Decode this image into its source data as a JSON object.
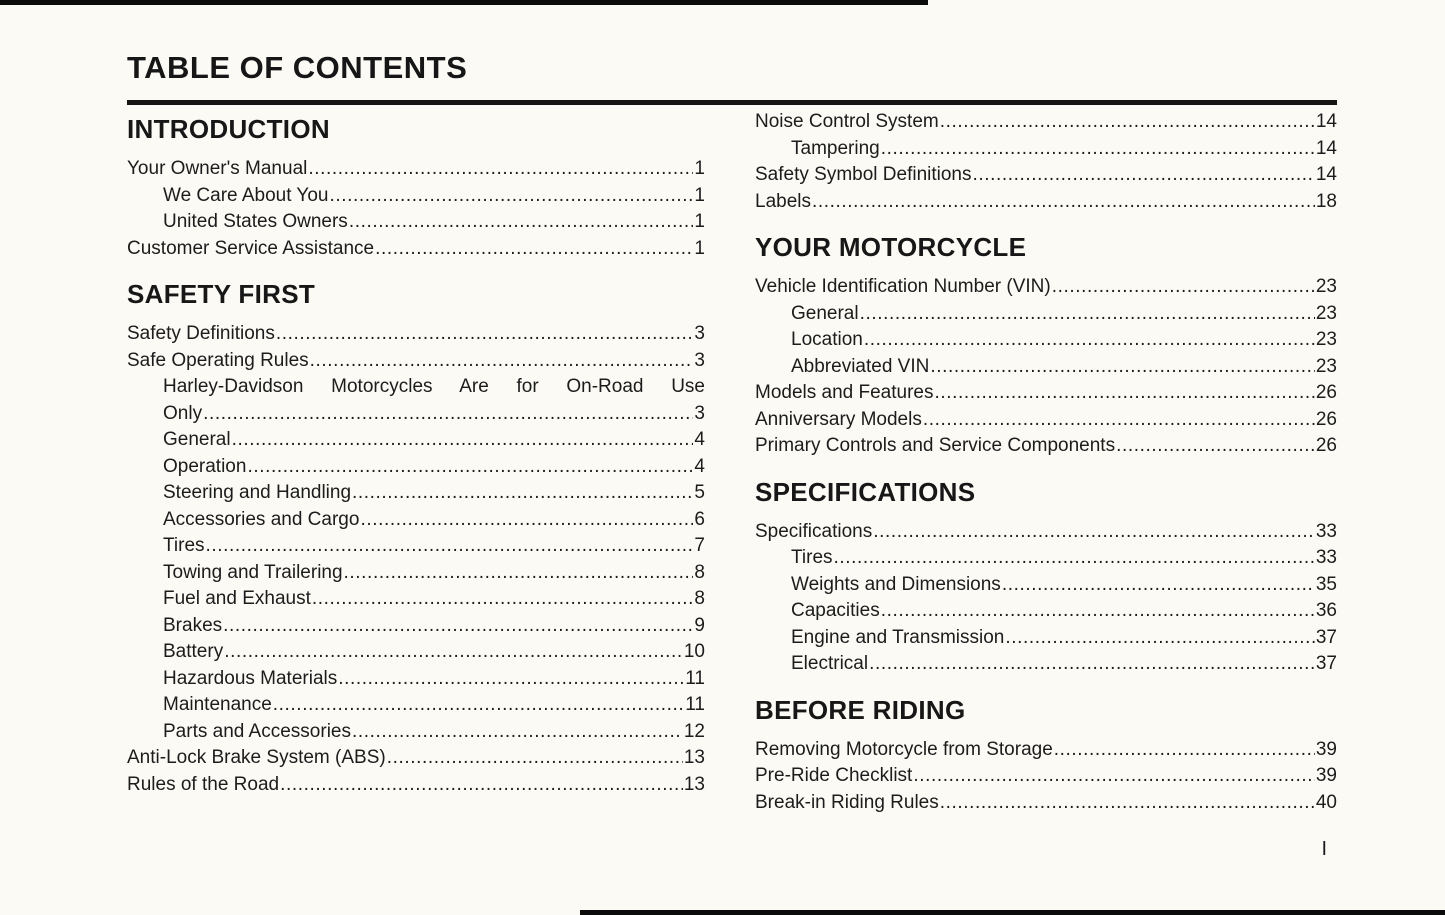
{
  "page": {
    "title": "TABLE OF CONTENTS",
    "folio": "I"
  },
  "columns": [
    {
      "sections": [
        {
          "heading": "INTRODUCTION",
          "entries": [
            {
              "label": "Your Owner's Manual",
              "page": "1",
              "indent": 0
            },
            {
              "label": "We Care About You",
              "page": "1",
              "indent": 1
            },
            {
              "label": "United States Owners",
              "page": "1",
              "indent": 1
            },
            {
              "label": "Customer Service Assistance",
              "page": "1",
              "indent": 0
            }
          ]
        },
        {
          "heading": "SAFETY FIRST",
          "entries": [
            {
              "label": "Safety Definitions",
              "page": "3",
              "indent": 0
            },
            {
              "label": "Safe Operating Rules",
              "page": "3",
              "indent": 0
            },
            {
              "label": "Harley-Davidson Motorcycles Are for On-Road Use Only",
              "page": "3",
              "indent": 1,
              "wrap": {
                "line1": "Harley-Davidson Motorcycles Are for On-Road Use",
                "line2": "Only"
              }
            },
            {
              "label": "General",
              "page": "4",
              "indent": 1
            },
            {
              "label": "Operation",
              "page": "4",
              "indent": 1
            },
            {
              "label": "Steering and Handling",
              "page": "5",
              "indent": 1
            },
            {
              "label": "Accessories and Cargo",
              "page": "6",
              "indent": 1
            },
            {
              "label": "Tires",
              "page": "7",
              "indent": 1
            },
            {
              "label": "Towing and Trailering",
              "page": "8",
              "indent": 1
            },
            {
              "label": "Fuel and Exhaust",
              "page": "8",
              "indent": 1
            },
            {
              "label": "Brakes",
              "page": "9",
              "indent": 1
            },
            {
              "label": "Battery",
              "page": "10",
              "indent": 1
            },
            {
              "label": "Hazardous Materials",
              "page": "11",
              "indent": 1
            },
            {
              "label": "Maintenance",
              "page": "11",
              "indent": 1
            },
            {
              "label": "Parts and Accessories",
              "page": "12",
              "indent": 1
            },
            {
              "label": "Anti-Lock Brake System (ABS)",
              "page": "13",
              "indent": 0
            },
            {
              "label": "Rules of the Road",
              "page": "13",
              "indent": 0
            }
          ]
        }
      ]
    },
    {
      "sections": [
        {
          "heading": null,
          "entries": [
            {
              "label": "Noise Control System",
              "page": "14",
              "indent": 0
            },
            {
              "label": "Tampering",
              "page": "14",
              "indent": 1
            },
            {
              "label": "Safety Symbol Definitions",
              "page": "14",
              "indent": 0
            },
            {
              "label": "Labels",
              "page": "18",
              "indent": 0
            }
          ]
        },
        {
          "heading": "YOUR MOTORCYCLE",
          "entries": [
            {
              "label": "Vehicle Identification Number (VIN)",
              "page": "23",
              "indent": 0
            },
            {
              "label": "General",
              "page": "23",
              "indent": 1
            },
            {
              "label": "Location",
              "page": "23",
              "indent": 1
            },
            {
              "label": "Abbreviated VIN",
              "page": "23",
              "indent": 1
            },
            {
              "label": "Models and Features",
              "page": "26",
              "indent": 0
            },
            {
              "label": "Anniversary Models",
              "page": "26",
              "indent": 0
            },
            {
              "label": "Primary Controls and Service Components",
              "page": "26",
              "indent": 0
            }
          ]
        },
        {
          "heading": "SPECIFICATIONS",
          "entries": [
            {
              "label": "Specifications",
              "page": "33",
              "indent": 0
            },
            {
              "label": "Tires",
              "page": "33",
              "indent": 1
            },
            {
              "label": "Weights and Dimensions",
              "page": "35",
              "indent": 1
            },
            {
              "label": "Capacities",
              "page": "36",
              "indent": 1
            },
            {
              "label": "Engine and Transmission",
              "page": "37",
              "indent": 1
            },
            {
              "label": "Electrical",
              "page": "37",
              "indent": 1
            }
          ]
        },
        {
          "heading": "BEFORE RIDING",
          "entries": [
            {
              "label": "Removing Motorcycle from Storage",
              "page": "39",
              "indent": 0
            },
            {
              "label": "Pre-Ride Checklist",
              "page": "39",
              "indent": 0
            },
            {
              "label": "Break-in Riding Rules",
              "page": "40",
              "indent": 0
            }
          ]
        }
      ]
    }
  ]
}
